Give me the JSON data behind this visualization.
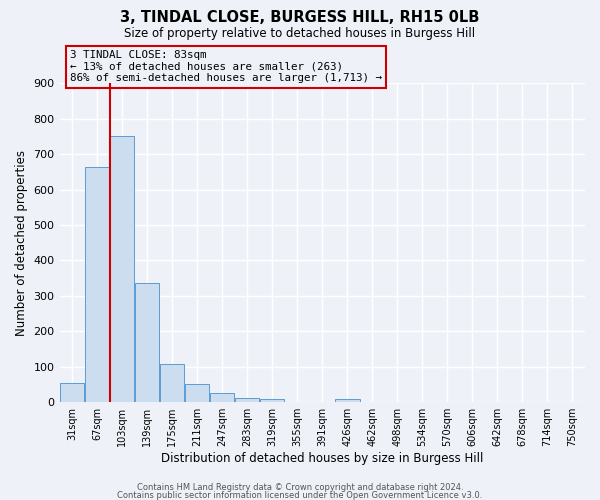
{
  "title1": "3, TINDAL CLOSE, BURGESS HILL, RH15 0LB",
  "title2": "Size of property relative to detached houses in Burgess Hill",
  "xlabel": "Distribution of detached houses by size in Burgess Hill",
  "ylabel": "Number of detached properties",
  "bin_labels": [
    "31sqm",
    "67sqm",
    "103sqm",
    "139sqm",
    "175sqm",
    "211sqm",
    "247sqm",
    "283sqm",
    "319sqm",
    "355sqm",
    "391sqm",
    "426sqm",
    "462sqm",
    "498sqm",
    "534sqm",
    "570sqm",
    "606sqm",
    "642sqm",
    "678sqm",
    "714sqm",
    "750sqm"
  ],
  "bar_heights": [
    55,
    663,
    750,
    335,
    108,
    52,
    25,
    13,
    10,
    0,
    0,
    10,
    0,
    0,
    0,
    0,
    0,
    0,
    0,
    0,
    0
  ],
  "bar_color": "#ccddf0",
  "bar_edge_color": "#5b9bd5",
  "vline_color": "#cc0000",
  "annotation_title": "3 TINDAL CLOSE: 83sqm",
  "annotation_line1": "← 13% of detached houses are smaller (263)",
  "annotation_line2": "86% of semi-detached houses are larger (1,713) →",
  "annotation_box_color": "#cc0000",
  "ylim": [
    0,
    900
  ],
  "yticks": [
    0,
    100,
    200,
    300,
    400,
    500,
    600,
    700,
    800,
    900
  ],
  "footer1": "Contains HM Land Registry data © Crown copyright and database right 2024.",
  "footer2": "Contains public sector information licensed under the Open Government Licence v3.0.",
  "bg_color": "#eef2f8",
  "grid_color": "#ffffff"
}
